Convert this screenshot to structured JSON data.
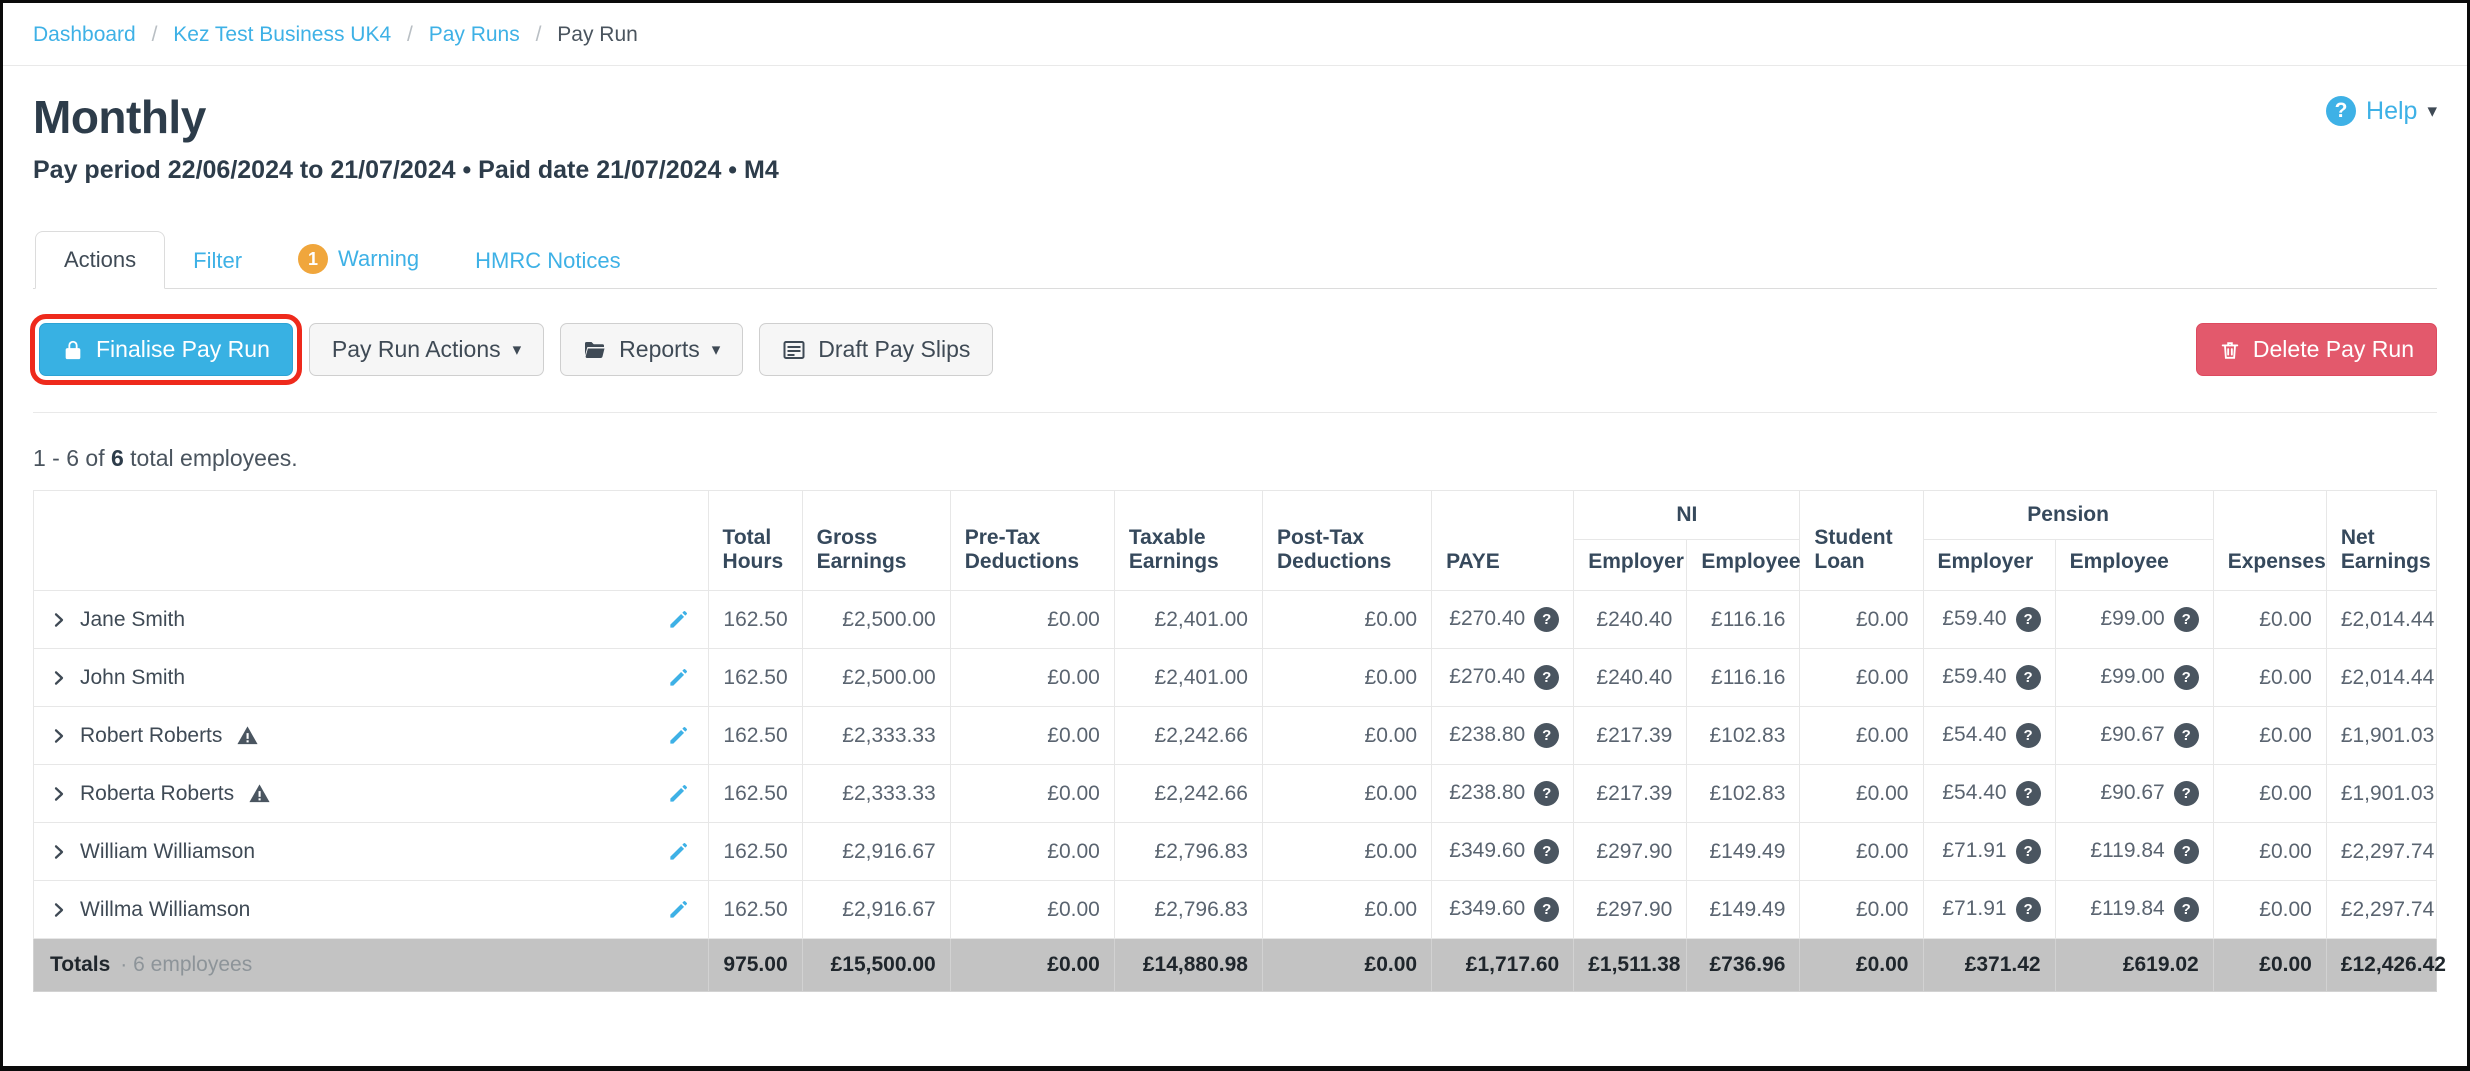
{
  "breadcrumb": {
    "separator": "/",
    "links": [
      "Dashboard",
      "Kez Test Business UK4",
      "Pay Runs"
    ],
    "current": "Pay Run"
  },
  "header": {
    "title": "Monthly",
    "subtitle": "Pay period 22/06/2024 to 21/07/2024 • Paid date 21/07/2024 • M4",
    "help_label": "Help",
    "help_glyph": "?"
  },
  "tabs": {
    "actions": "Actions",
    "filter": "Filter",
    "warning_badge": "1",
    "warning": "Warning",
    "hmrc": "HMRC Notices"
  },
  "toolbar": {
    "finalise_label": "Finalise Pay Run",
    "pay_run_actions_label": "Pay Run Actions",
    "reports_label": "Reports",
    "draft_pay_slips_label": "Draft Pay Slips",
    "delete_label": "Delete Pay Run"
  },
  "summary": {
    "prefix": "1 - 6 of ",
    "count": "6",
    "suffix": " total employees."
  },
  "table": {
    "headers_left": [
      "Total Hours",
      "Gross Earnings",
      "Pre-Tax Deductions",
      "Taxable Earnings",
      "Post-Tax Deductions",
      "PAYE"
    ],
    "group_ni": {
      "label": "NI",
      "sub": [
        "Employer",
        "Employee"
      ]
    },
    "student_loan": "Student Loan",
    "group_pension": {
      "label": "Pension",
      "sub": [
        "Employer",
        "Employee"
      ]
    },
    "headers_right": [
      "Expenses",
      "Net Earnings"
    ],
    "help_glyph": "?",
    "help_value_indices": [
      5,
      9,
      10
    ],
    "rows": [
      {
        "name": "Jane Smith",
        "warning": false,
        "values": [
          "162.50",
          "£2,500.00",
          "£0.00",
          "£2,401.00",
          "£0.00",
          "£270.40",
          "£240.40",
          "£116.16",
          "£0.00",
          "£59.40",
          "£99.00",
          "£0.00",
          "£2,014.44"
        ]
      },
      {
        "name": "John Smith",
        "warning": false,
        "values": [
          "162.50",
          "£2,500.00",
          "£0.00",
          "£2,401.00",
          "£0.00",
          "£270.40",
          "£240.40",
          "£116.16",
          "£0.00",
          "£59.40",
          "£99.00",
          "£0.00",
          "£2,014.44"
        ]
      },
      {
        "name": "Robert Roberts",
        "warning": true,
        "values": [
          "162.50",
          "£2,333.33",
          "£0.00",
          "£2,242.66",
          "£0.00",
          "£238.80",
          "£217.39",
          "£102.83",
          "£0.00",
          "£54.40",
          "£90.67",
          "£0.00",
          "£1,901.03"
        ]
      },
      {
        "name": "Roberta Roberts",
        "warning": true,
        "values": [
          "162.50",
          "£2,333.33",
          "£0.00",
          "£2,242.66",
          "£0.00",
          "£238.80",
          "£217.39",
          "£102.83",
          "£0.00",
          "£54.40",
          "£90.67",
          "£0.00",
          "£1,901.03"
        ]
      },
      {
        "name": "William Williamson",
        "warning": false,
        "values": [
          "162.50",
          "£2,916.67",
          "£0.00",
          "£2,796.83",
          "£0.00",
          "£349.60",
          "£297.90",
          "£149.49",
          "£0.00",
          "£71.91",
          "£119.84",
          "£0.00",
          "£2,297.74"
        ]
      },
      {
        "name": "Willma Williamson",
        "warning": false,
        "values": [
          "162.50",
          "£2,916.67",
          "£0.00",
          "£2,796.83",
          "£0.00",
          "£349.60",
          "£297.90",
          "£149.49",
          "£0.00",
          "£71.91",
          "£119.84",
          "£0.00",
          "£2,297.74"
        ]
      }
    ],
    "totals": {
      "label": "Totals",
      "separator": "·",
      "sublabel": "6 employees",
      "values": [
        "975.00",
        "£15,500.00",
        "£0.00",
        "£14,880.98",
        "£0.00",
        "£1,717.60",
        "£1,511.38",
        "£736.96",
        "£0.00",
        "£371.42",
        "£619.02",
        "£0.00",
        "£12,426.42"
      ]
    }
  },
  "colors": {
    "accent_blue": "#3eb1e6",
    "primary_button_blue": "#38b1e3",
    "badge_orange": "#f0a63c",
    "delete_red": "#e3596c",
    "annotation_red": "#ee2a1c",
    "slate_text": "#36495c",
    "totals_gray": "#c3c3c3"
  }
}
